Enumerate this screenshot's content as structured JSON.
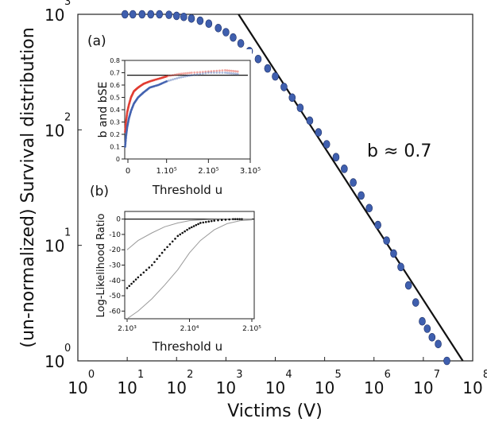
{
  "chart_data": [
    {
      "panel": "main",
      "type": "scatter",
      "xlabel": "Victims (V)",
      "ylabel": "(un-normalized) Survival distribution",
      "x_scale": "log",
      "y_scale": "log",
      "xlim": [
        1,
        100000000
      ],
      "ylim": [
        1,
        1000
      ],
      "x_ticks": [
        {
          "base": "10",
          "exp": "0",
          "value": 1
        },
        {
          "base": "10",
          "exp": "1",
          "value": 10
        },
        {
          "base": "10",
          "exp": "2",
          "value": 100
        },
        {
          "base": "10",
          "exp": "3",
          "value": 1000
        },
        {
          "base": "10",
          "exp": "4",
          "value": 10000
        },
        {
          "base": "10",
          "exp": "5",
          "value": 100000
        },
        {
          "base": "10",
          "exp": "6",
          "value": 1000000
        },
        {
          "base": "10",
          "exp": "7",
          "value": 10000000
        },
        {
          "base": "10",
          "exp": "8",
          "value": 100000000
        }
      ],
      "y_ticks": [
        {
          "base": "10",
          "exp": "0",
          "value": 1
        },
        {
          "base": "10",
          "exp": "1",
          "value": 10
        },
        {
          "base": "10",
          "exp": "2",
          "value": 100
        },
        {
          "base": "10",
          "exp": "3",
          "value": 1000
        }
      ],
      "annotation": "b ≈ 0.7",
      "fit_line": {
        "slope": -0.7,
        "points": [
          [
            1800,
            1000
          ],
          [
            63000000,
            0.66
          ]
        ]
      },
      "points": [
        [
          9,
          1000
        ],
        [
          13,
          1000
        ],
        [
          20,
          1000
        ],
        [
          30,
          1000
        ],
        [
          45,
          1000
        ],
        [
          70,
          990
        ],
        [
          100,
          970
        ],
        [
          140,
          950
        ],
        [
          200,
          920
        ],
        [
          300,
          880
        ],
        [
          450,
          830
        ],
        [
          700,
          760
        ],
        [
          1000,
          700
        ],
        [
          1400,
          630
        ],
        [
          2000,
          560
        ],
        [
          3000,
          480
        ],
        [
          4500,
          410
        ],
        [
          7000,
          340
        ],
        [
          10000,
          290
        ],
        [
          15000,
          235
        ],
        [
          22000,
          190
        ],
        [
          32000,
          155
        ],
        [
          50000,
          120
        ],
        [
          75000,
          95
        ],
        [
          110000,
          75
        ],
        [
          170000,
          58
        ],
        [
          250000,
          46
        ],
        [
          380000,
          35
        ],
        [
          550000,
          27
        ],
        [
          800000,
          21
        ],
        [
          1200000,
          15
        ],
        [
          1800000,
          11
        ],
        [
          2500000,
          8.5
        ],
        [
          3500000,
          6.5
        ],
        [
          5000000,
          4.5
        ],
        [
          7000000,
          3.2
        ],
        [
          9500000,
          2.2
        ],
        [
          12000000,
          1.9
        ],
        [
          15000000,
          1.6
        ],
        [
          20000000,
          1.4
        ],
        [
          30000000,
          1.0
        ]
      ],
      "point_color": "#3f5fae"
    },
    {
      "panel": "inset_a",
      "type": "scatter",
      "panel_label": "(a)",
      "xlabel": "Threshold u",
      "ylabel": "b and bSE",
      "xlim": [
        0,
        300000
      ],
      "ylim": [
        0,
        0.8
      ],
      "x_ticks": [
        {
          "label": "0",
          "value": 0
        },
        {
          "label": "1.10⁵",
          "value": 100000
        },
        {
          "label": "2.10⁵",
          "value": 200000
        },
        {
          "label": "3.10⁵",
          "value": 300000
        }
      ],
      "y_ticks": [
        {
          "label": "0",
          "value": 0
        },
        {
          "label": "0.1",
          "value": 0.1
        },
        {
          "label": "0.2",
          "value": 0.2
        },
        {
          "label": "0.3",
          "value": 0.3
        },
        {
          "label": "0.4",
          "value": 0.4
        },
        {
          "label": "0.5",
          "value": 0.5
        },
        {
          "label": "0.6",
          "value": 0.6
        },
        {
          "label": "0.7",
          "value": 0.7
        },
        {
          "label": "0.8",
          "value": 0.8
        }
      ],
      "reference_line": 0.68,
      "series": [
        {
          "color": "#e03a2f",
          "points": [
            [
              1000,
              0.22
            ],
            [
              3000,
              0.3
            ],
            [
              6000,
              0.38
            ],
            [
              10000,
              0.44
            ],
            [
              15000,
              0.5
            ],
            [
              22000,
              0.55
            ],
            [
              32000,
              0.58
            ],
            [
              45000,
              0.61
            ],
            [
              60000,
              0.63
            ],
            [
              80000,
              0.65
            ],
            [
              100000,
              0.67
            ],
            [
              130000,
              0.69
            ],
            [
              160000,
              0.7
            ],
            [
              200000,
              0.71
            ],
            [
              240000,
              0.72
            ],
            [
              270000,
              0.71
            ]
          ]
        },
        {
          "color": "#3f5fae",
          "points": [
            [
              1000,
              0.1
            ],
            [
              3000,
              0.18
            ],
            [
              6000,
              0.26
            ],
            [
              10000,
              0.33
            ],
            [
              15000,
              0.39
            ],
            [
              22000,
              0.45
            ],
            [
              32000,
              0.5
            ],
            [
              45000,
              0.54
            ],
            [
              60000,
              0.58
            ],
            [
              80000,
              0.6
            ],
            [
              100000,
              0.63
            ],
            [
              130000,
              0.66
            ],
            [
              160000,
              0.68
            ],
            [
              200000,
              0.7
            ],
            [
              240000,
              0.7
            ],
            [
              270000,
              0.69
            ]
          ]
        }
      ]
    },
    {
      "panel": "inset_b",
      "type": "line",
      "panel_label": "(b)",
      "xlabel": "Threshold u",
      "ylabel": "Log-Likelihood Ratio",
      "x_scale": "log",
      "xlim": [
        2000,
        200000
      ],
      "ylim": [
        -65,
        5
      ],
      "x_ticks": [
        {
          "label": "2.10³",
          "value": 2000
        },
        {
          "label": "2.10⁴",
          "value": 20000
        },
        {
          "label": "2.10⁵",
          "value": 200000
        }
      ],
      "y_ticks": [
        {
          "label": "0",
          "value": 0
        },
        {
          "label": "-10",
          "value": -10
        },
        {
          "label": "-20",
          "value": -20
        },
        {
          "label": "-30",
          "value": -30
        },
        {
          "label": "-40",
          "value": -40
        },
        {
          "label": "-50",
          "value": -50
        },
        {
          "label": "-60",
          "value": -60
        }
      ],
      "reference_line": 0,
      "series": [
        {
          "role": "upper",
          "color": "#9a9a9a",
          "points": [
            [
              2000,
              -20
            ],
            [
              3000,
              -14
            ],
            [
              5000,
              -9
            ],
            [
              8000,
              -5
            ],
            [
              13000,
              -2.5
            ],
            [
              20000,
              -1
            ],
            [
              40000,
              -0.3
            ],
            [
              100000,
              0
            ],
            [
              200000,
              0
            ]
          ]
        },
        {
          "role": "estimate",
          "color": "#111111",
          "points": [
            [
              2000,
              -45
            ],
            [
              3000,
              -38
            ],
            [
              5000,
              -30
            ],
            [
              8000,
              -20
            ],
            [
              13000,
              -11
            ],
            [
              20000,
              -6
            ],
            [
              30000,
              -2.5
            ],
            [
              50000,
              -1
            ],
            [
              100000,
              0
            ],
            [
              150000,
              0
            ]
          ]
        },
        {
          "role": "lower",
          "color": "#9a9a9a",
          "points": [
            [
              2000,
              -65
            ],
            [
              3000,
              -60
            ],
            [
              5000,
              -52
            ],
            [
              8000,
              -43
            ],
            [
              13000,
              -33
            ],
            [
              20000,
              -22
            ],
            [
              30000,
              -14
            ],
            [
              50000,
              -7
            ],
            [
              80000,
              -3
            ],
            [
              130000,
              -1
            ],
            [
              200000,
              -0.5
            ]
          ]
        }
      ]
    }
  ]
}
